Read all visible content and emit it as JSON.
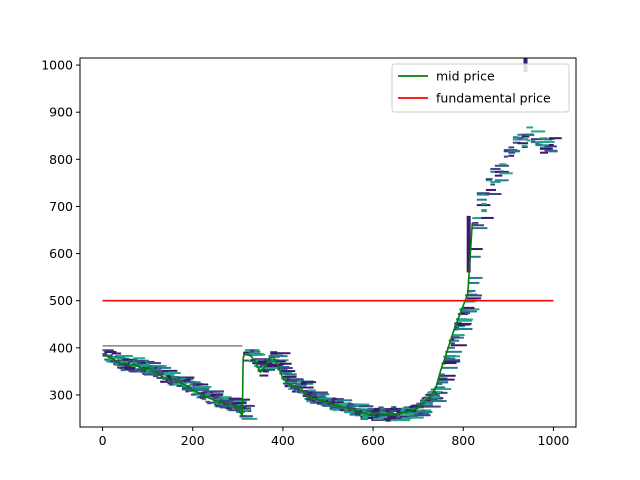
{
  "chart_data": {
    "type": "line",
    "title": "",
    "xlabel": "",
    "ylabel": "",
    "xlim": [
      -50,
      1050
    ],
    "ylim": [
      232,
      1015
    ],
    "x_ticks": [
      0,
      200,
      400,
      600,
      800,
      1000
    ],
    "y_ticks": [
      300,
      400,
      500,
      600,
      700,
      800,
      900,
      1000
    ],
    "legend_position": "top-right",
    "grid": false,
    "legend": [
      {
        "label": "mid price",
        "color": "#008000"
      },
      {
        "label": "fundamental price",
        "color": "#ff0000"
      }
    ],
    "series": [
      {
        "name": "mid price",
        "color": "#008000",
        "x": [
          0,
          10,
          20,
          30,
          40,
          50,
          60,
          70,
          80,
          90,
          100,
          110,
          120,
          130,
          140,
          150,
          160,
          170,
          180,
          190,
          200,
          210,
          220,
          230,
          240,
          250,
          260,
          270,
          280,
          290,
          300,
          305,
          310,
          312,
          315,
          320,
          330,
          340,
          350,
          360,
          370,
          380,
          390,
          400,
          410,
          420,
          430,
          440,
          450,
          460,
          470,
          480,
          490,
          500,
          510,
          520,
          530,
          540,
          550,
          560,
          570,
          580,
          590,
          600,
          610,
          620,
          630,
          640,
          650,
          660,
          670,
          680,
          690,
          700,
          710,
          720,
          730,
          740,
          750,
          760,
          770,
          780,
          790,
          800,
          810,
          820
        ],
        "values": [
          385,
          382,
          378,
          372,
          365,
          368,
          362,
          366,
          360,
          355,
          358,
          352,
          345,
          340,
          336,
          332,
          334,
          328,
          322,
          318,
          310,
          306,
          300,
          296,
          292,
          288,
          284,
          282,
          280,
          278,
          276,
          262,
          258,
          380,
          385,
          386,
          382,
          368,
          348,
          360,
          378,
          380,
          360,
          335,
          325,
          320,
          318,
          315,
          300,
          295,
          292,
          290,
          287,
          283,
          280,
          278,
          275,
          272,
          270,
          268,
          262,
          262,
          258,
          260,
          262,
          260,
          258,
          262,
          258,
          262,
          262,
          265,
          268,
          272,
          282,
          292,
          300,
          318,
          352,
          380,
          410,
          440,
          465,
          490,
          515,
          665
        ]
      },
      {
        "name": "fundamental price",
        "color": "#ff0000",
        "x": [
          0,
          1000
        ],
        "values": [
          500,
          500
        ]
      }
    ],
    "order_book_colors": [
      "#3b1a6e",
      "#414487",
      "#2a788e",
      "#22a884"
    ]
  }
}
